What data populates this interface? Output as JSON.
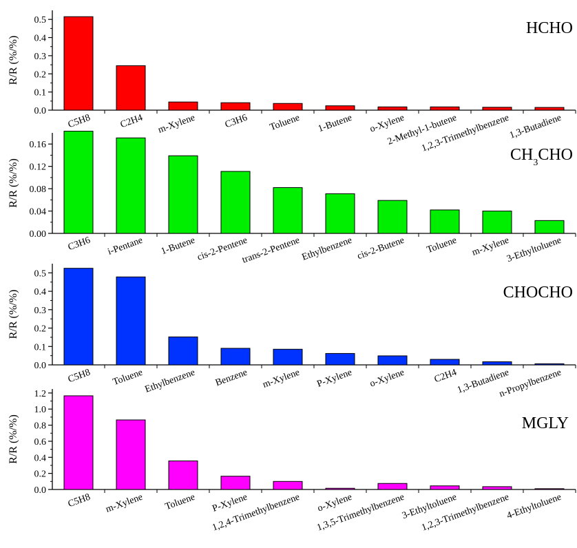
{
  "chart_data": [
    {
      "type": "bar",
      "title": "HCHO",
      "ylabel": "R/R (%/%)",
      "ylim": [
        0,
        0.55
      ],
      "yticks": [
        0.0,
        0.1,
        0.2,
        0.3,
        0.4,
        0.5
      ],
      "tick_labels": [
        "0.0",
        "0.1",
        "0.2",
        "0.3",
        "0.4",
        "0.5"
      ],
      "color": "#ff0000",
      "categories": [
        "C5H8",
        "C2H4",
        "m-Xylene",
        "C3H6",
        "Toluene",
        "1-Butene",
        "o-Xylene",
        "2-Methyl-1-butene",
        "1,2,3-Trimethylbenzene",
        "1,3-Butadiene"
      ],
      "values": [
        0.515,
        0.245,
        0.045,
        0.041,
        0.037,
        0.024,
        0.018,
        0.018,
        0.016,
        0.015
      ]
    },
    {
      "type": "bar",
      "title": "CH3CHO",
      "title_main_a": "CH",
      "title_sub": "3",
      "title_main_b": "CHO",
      "ylabel": "R/R (%/%)",
      "ylim": [
        0,
        0.18
      ],
      "yticks": [
        0.0,
        0.04,
        0.08,
        0.12,
        0.16
      ],
      "tick_labels": [
        "0.00",
        "0.04",
        "0.08",
        "0.12",
        "0.16"
      ],
      "color": "#00ee00",
      "categories": [
        "C3H6",
        "i-Pentane",
        "1-Butene",
        "cis-2-Pentene",
        "trans-2-Pentene",
        "Ethylbenzene",
        "cis-2-Butene",
        "Toluene",
        "m-Xylene",
        "3-Ethyltoluene"
      ],
      "values": [
        0.183,
        0.171,
        0.139,
        0.111,
        0.082,
        0.071,
        0.059,
        0.042,
        0.04,
        0.023
      ]
    },
    {
      "type": "bar",
      "title": "CHOCHO",
      "ylabel": "R/R (%/%)",
      "ylim": [
        0,
        0.55
      ],
      "yticks": [
        0.0,
        0.1,
        0.2,
        0.3,
        0.4,
        0.5
      ],
      "tick_labels": [
        "0.0",
        "0.1",
        "0.2",
        "0.3",
        "0.4",
        "0.5"
      ],
      "color": "#0033ff",
      "categories": [
        "C5H8",
        "Toluene",
        "Ethylbenzene",
        "Benzene",
        "m-Xylene",
        "P-Xylene",
        "o-Xylene",
        "C2H4",
        "1,3-Butadiene",
        "n-Propylbenzene"
      ],
      "values": [
        0.525,
        0.478,
        0.152,
        0.09,
        0.085,
        0.062,
        0.049,
        0.03,
        0.017,
        0.006
      ]
    },
    {
      "type": "bar",
      "title": "MGLY",
      "ylabel": "R/R (%/%)",
      "ylim": [
        0,
        1.25
      ],
      "yticks": [
        0.0,
        0.2,
        0.4,
        0.6,
        0.8,
        1.0,
        1.2
      ],
      "tick_labels": [
        "0.0",
        "0.2",
        "0.4",
        "0.6",
        "0.8",
        "1.0",
        "1.2"
      ],
      "color": "#ff00ff",
      "categories": [
        "C5H8",
        "m-Xylene",
        "Toluene",
        "P-Xylene",
        "1,2,4-Trimethylbenzene",
        "o-Xylene",
        "1,3,5-Trimethylbenzene",
        "3-Ethyltoluene",
        "1,2,3-Trimethylbenzene",
        "4-Ethyltoluene"
      ],
      "values": [
        1.165,
        0.865,
        0.355,
        0.165,
        0.1,
        0.015,
        0.075,
        0.045,
        0.035,
        0.01
      ]
    }
  ]
}
